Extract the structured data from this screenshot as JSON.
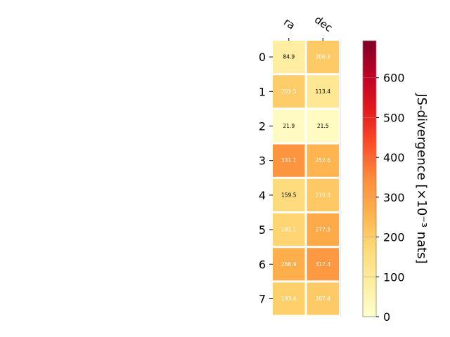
{
  "chart_data": {
    "type": "heatmap",
    "columns": [
      "ra",
      "dec"
    ],
    "rows": [
      "0",
      "1",
      "2",
      "3",
      "4",
      "5",
      "6",
      "7"
    ],
    "values": [
      [
        84.9,
        206.3
      ],
      [
        201.5,
        113.4
      ],
      [
        21.9,
        21.5
      ],
      [
        331.1,
        252.6
      ],
      [
        159.5,
        210.3
      ],
      [
        181.1,
        277.5
      ],
      [
        268.9,
        317.3
      ],
      [
        193.4,
        207.4
      ]
    ],
    "value_labels": [
      [
        "84.9",
        "206.3"
      ],
      [
        "201.5",
        "113.4"
      ],
      [
        "21.9",
        "21.5"
      ],
      [
        "331.1",
        "252.6"
      ],
      [
        "159.5",
        "210.3"
      ],
      [
        "181.1",
        "277.5"
      ],
      [
        "268.9",
        "317.3"
      ],
      [
        "193.4",
        "207.4"
      ]
    ],
    "label_text_colors": [
      [
        "#000000",
        "#ffffff"
      ],
      [
        "#ffffff",
        "#000000"
      ],
      [
        "#000000",
        "#000000"
      ],
      [
        "#ffffff",
        "#ffffff"
      ],
      [
        "#000000",
        "#ffffff"
      ],
      [
        "#ffffff",
        "#ffffff"
      ],
      [
        "#ffffff",
        "#ffffff"
      ],
      [
        "#ffffff",
        "#ffffff"
      ]
    ],
    "colormap": "YlOrRd",
    "colorbar": {
      "label": "JS-divergence [×10⁻³ nats]",
      "ticks": [
        0,
        100,
        200,
        300,
        400,
        500,
        600
      ],
      "tick_labels": [
        "0",
        "100",
        "200",
        "300",
        "400",
        "500",
        "600"
      ],
      "vmin": 0,
      "vmax": 693
    },
    "grid": false
  }
}
